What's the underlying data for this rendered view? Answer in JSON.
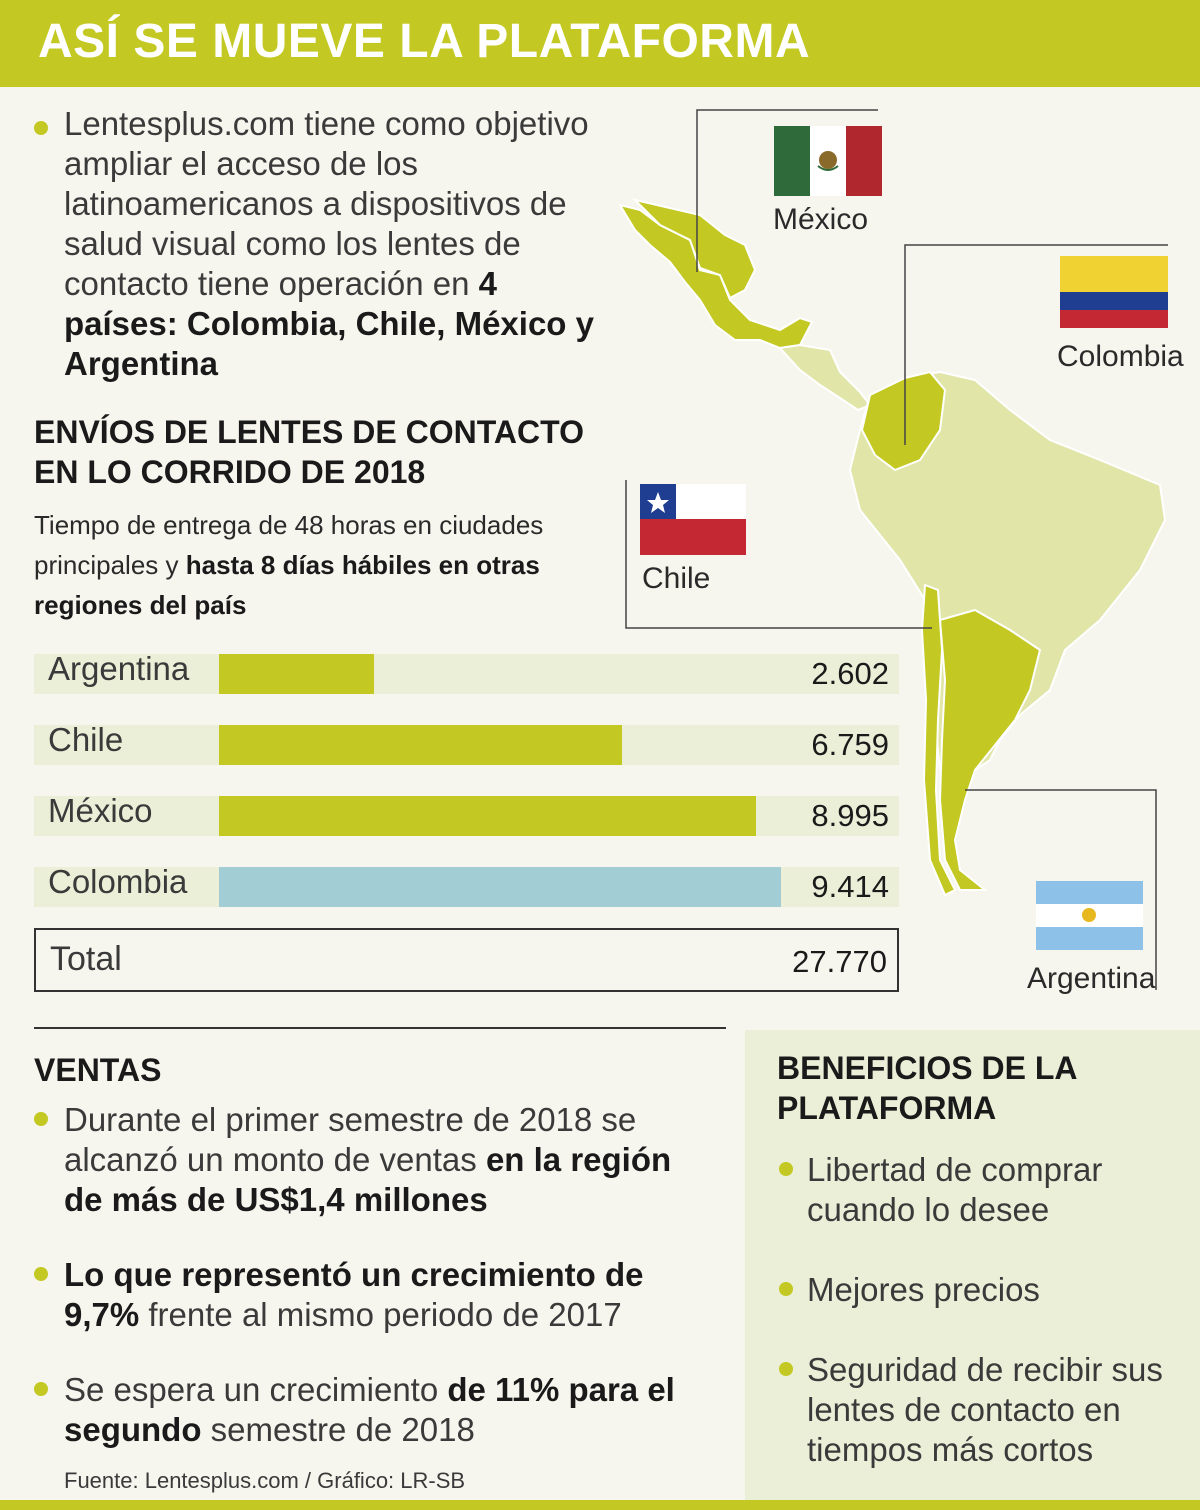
{
  "header": {
    "title": "ASÍ SE MUEVE LA PLATAFORMA"
  },
  "intro": {
    "text": "Lentesplus.com tiene como objetivo ampliar el acceso de los latinoamericanos a dispositivos de salud visual como los lentes de contacto tiene operación en",
    "bold": "4 países: Colombia, Chile, México y Argentina"
  },
  "section": {
    "title_line1": "ENVÍOS DE LENTES DE CONTACTO",
    "title_line2": "EN LO CORRIDO DE 2018",
    "subtitle_plain": "Tiempo de entrega de 48 horas en ciudades principales y",
    "subtitle_bold": "hasta 8 días hábiles en otras regiones del país"
  },
  "chart_data": {
    "type": "bar",
    "orientation": "horizontal",
    "title": "ENVÍOS DE LENTES DE CONTACTO EN LO CORRIDO DE 2018",
    "categories": [
      "Argentina",
      "Chile",
      "México",
      "Colombia"
    ],
    "values": [
      2602,
      6759,
      8995,
      9414
    ],
    "value_labels": [
      "2.602",
      "6.759",
      "8.995",
      "9.414"
    ],
    "bar_colors": [
      "#c3c922",
      "#c3c922",
      "#c3c922",
      "#a3cdd4"
    ],
    "total_label": "Total",
    "total_value": "27.770",
    "xlim": [
      0,
      9800
    ],
    "grid": false
  },
  "map": {
    "labels": {
      "mexico": "México",
      "colombia": "Colombia",
      "chile": "Chile",
      "argentina": "Argentina"
    },
    "colors": {
      "highlight": "#c3c922",
      "other": "#e1e5a8",
      "border": "#ffffff"
    }
  },
  "ventas": {
    "title": "VENTAS",
    "item1_plain": "Durante el primer semestre de 2018 se alcanzó un monto de ventas",
    "item1_bold": "en la región de más de  US$1,4 millones",
    "item2_bold": "Lo que representó un crecimiento de 9,7%",
    "item2_plain": " frente al mismo periodo de 2017",
    "item3_plain1": "Se espera un crecimiento",
    "item3_bold": "de 11% para el segundo",
    "item3_plain2": " semestre de 2018"
  },
  "beneficios": {
    "title": "BENEFICIOS DE LA PLATAFORMA",
    "items": [
      "Libertad de comprar cuando lo desee",
      "Mejores precios",
      "Seguridad de recibir sus lentes de contacto en tiempos más cortos"
    ]
  },
  "source": "Fuente: Lentesplus.com / Gráfico: LR-SB"
}
